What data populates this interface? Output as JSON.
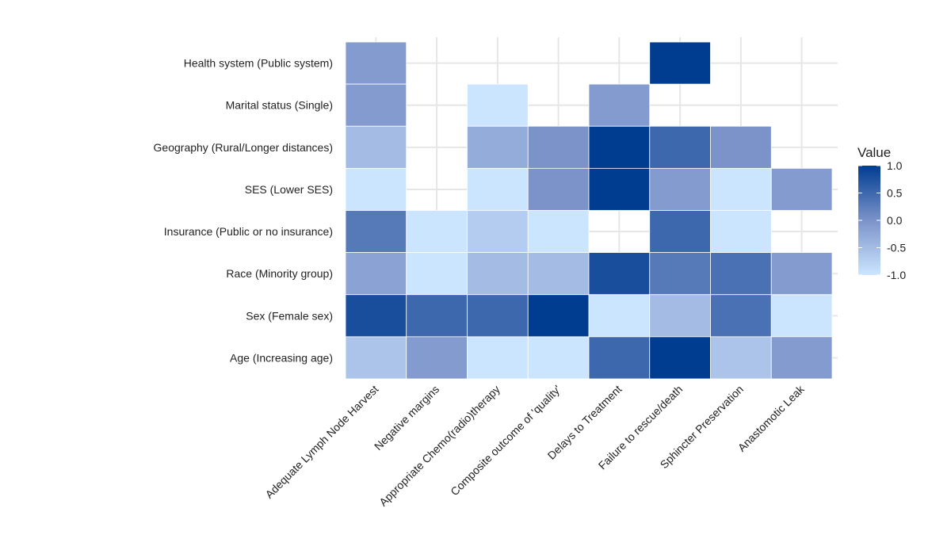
{
  "chart_data": {
    "type": "heatmap",
    "title": "",
    "xlabel": "",
    "ylabel": "",
    "x_categories": [
      "Adequate Lymph Node Harvest",
      "Negative margins",
      "Appropriate Chemo(radio)therapy",
      "Composite outcome of 'quality'",
      "Delays to Treatment",
      "Failure to rescue/death",
      "Sphincter Preservation",
      "Anastomotic Leak"
    ],
    "y_categories": [
      "Health system (Public system)",
      "Marital status (Single)",
      "Geography (Rural/Longer distances)",
      "SES (Lower SES)",
      "Insurance (Public or no insurance)",
      "Race (Minority group)",
      "Sex (Female sex)",
      "Age (Increasing age)"
    ],
    "values": [
      [
        -0.1,
        null,
        null,
        null,
        null,
        1.0,
        null,
        null
      ],
      [
        -0.1,
        null,
        -1.0,
        null,
        -0.1,
        null,
        null,
        null
      ],
      [
        -0.5,
        null,
        -0.3,
        0.0,
        1.0,
        0.5,
        0.0,
        null
      ],
      [
        -1.0,
        null,
        -1.0,
        0.0,
        1.0,
        -0.1,
        -1.0,
        -0.1
      ],
      [
        0.3,
        -1.0,
        -0.7,
        -1.0,
        null,
        0.5,
        -1.0,
        null
      ],
      [
        -0.2,
        -1.0,
        -0.5,
        -0.5,
        0.8,
        0.3,
        0.4,
        -0.1
      ],
      [
        0.8,
        0.5,
        0.5,
        1.0,
        -1.0,
        -0.5,
        0.4,
        -1.0
      ],
      [
        -0.6,
        -0.1,
        -1.0,
        -1.0,
        0.5,
        1.0,
        -0.6,
        -0.1
      ]
    ],
    "color_scale": {
      "low": "#cce5ff",
      "mid": "#7b93c9",
      "high": "#003d91",
      "range": [
        -1.0,
        1.0
      ]
    },
    "legend": {
      "title": "Value",
      "ticks": [
        "1.0",
        "0.5",
        "0.0",
        "-0.5",
        "-1.0"
      ],
      "position": "right"
    },
    "grid": true
  }
}
